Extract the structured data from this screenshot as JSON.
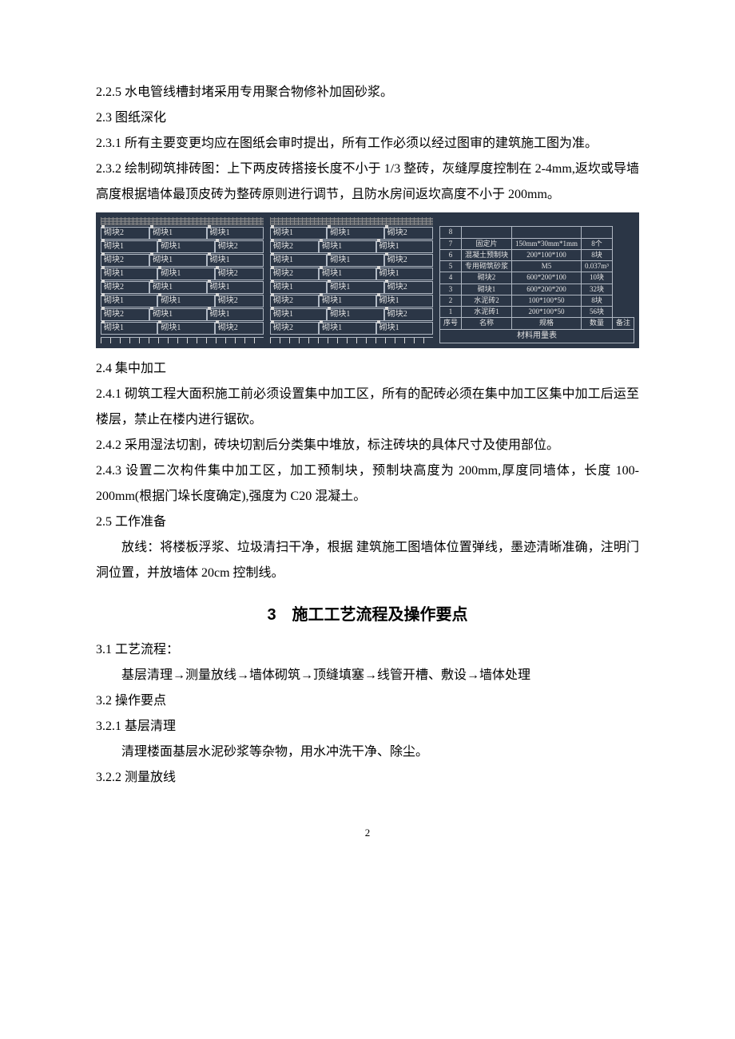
{
  "doc": {
    "p_2_2_5": "2.2.5 水电管线槽封堵采用专用聚合物修补加固砂浆。",
    "p_2_3": "2.3 图纸深化",
    "p_2_3_1": "2.3.1 所有主要变更均应在图纸会审时提出，所有工作必须以经过图审的建筑施工图为准。",
    "p_2_3_2": "2.3.2 绘制砌筑排砖图：上下两皮砖搭接长度不小于 1/3 整砖，灰缝厚度控制在 2-4mm,返坎或导墙高度根据墙体最顶皮砖为整砖原则进行调节，且防水房间返坎高度不小于 200mm。",
    "p_2_4": "2.4 集中加工",
    "p_2_4_1": "2.4.1 砌筑工程大面积施工前必须设置集中加工区，所有的配砖必须在集中加工区集中加工后运至楼层，禁止在楼内进行锯砍。",
    "p_2_4_2": "2.4.2 采用湿法切割，砖块切割后分类集中堆放，标注砖块的具体尺寸及使用部位。",
    "p_2_4_3": "2.4.3 设置二次构件集中加工区，加工预制块，预制块高度为 200mm,厚度同墙体，长度 100-200mm(根据门垛长度确定),强度为 C20 混凝土。",
    "p_2_5": "2.5 工作准备",
    "p_2_5_body": "放线：将楼板浮浆、垃圾清扫干净，根据 建筑施工图墙体位置弹线，墨迹清晰准确，注明门洞位置，并放墙体 20cm 控制线。",
    "h3": "3　施工工艺流程及操作要点",
    "p_3_1": "3.1 工艺流程：",
    "p_3_1_body": "基层清理→测量放线→墙体砌筑→顶缝填塞→线管开槽、敷设→墙体处理",
    "p_3_2": "3.2 操作要点",
    "p_3_2_1": "3.2.1 基层清理",
    "p_3_2_1_body": "清理楼面基层水泥砂浆等杂物，用水冲洗干净、除尘。",
    "p_3_2_2": "3.2.2 测量放线",
    "page_number": "2"
  },
  "cad": {
    "colors": {
      "panel_bg": "#2b3646",
      "line": "#b0b8c3",
      "text": "#e3e3e3"
    },
    "brick_label_1": "砌块1",
    "brick_label_2": "砌块2",
    "left_rows": [
      [
        "砌块2",
        "砌块1",
        "砌块1"
      ],
      [
        "砌块1",
        "砌块1",
        "砌块2"
      ],
      [
        "砌块2",
        "砌块1",
        "砌块1"
      ],
      [
        "砌块1",
        "砌块1",
        "砌块2"
      ],
      [
        "砌块2",
        "砌块1",
        "砌块1"
      ],
      [
        "砌块1",
        "砌块1",
        "砌块2"
      ],
      [
        "砌块2",
        "砌块1",
        "砌块1"
      ],
      [
        "砌块1",
        "砌块1",
        "砌块2"
      ]
    ],
    "mid_rows": [
      [
        "砌块1",
        "砌块1",
        "砌块2"
      ],
      [
        "砌块2",
        "砌块1",
        "砌块1"
      ],
      [
        "砌块1",
        "砌块1",
        "砌块2"
      ],
      [
        "砌块2",
        "砌块1",
        "砌块1"
      ],
      [
        "砌块1",
        "砌块1",
        "砌块2"
      ],
      [
        "砌块2",
        "砌块1",
        "砌块1"
      ],
      [
        "砌块1",
        "砌块1",
        "砌块2"
      ],
      [
        "砌块2",
        "砌块1",
        "砌块1"
      ]
    ],
    "material_table": {
      "rows": [
        [
          "8",
          "",
          "",
          ""
        ],
        [
          "7",
          "固定片",
          "150mm*30mm*1mm",
          "8个"
        ],
        [
          "6",
          "混凝土预制块",
          "200*100*100",
          "8块"
        ],
        [
          "5",
          "专用砌筑砂浆",
          "M5",
          "0.037m³"
        ],
        [
          "4",
          "砌块2",
          "600*200*100",
          "10块"
        ],
        [
          "3",
          "砌块1",
          "600*200*200",
          "32块"
        ],
        [
          "2",
          "水泥砖2",
          "100*100*50",
          "8块"
        ],
        [
          "1",
          "水泥砖1",
          "200*100*50",
          "56块"
        ]
      ],
      "header": [
        "序号",
        "名称",
        "规格",
        "数量",
        "备注"
      ],
      "caption": "材料用量表"
    }
  }
}
